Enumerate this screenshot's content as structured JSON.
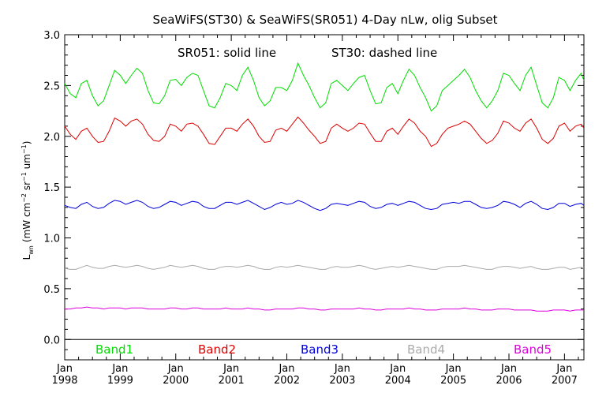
{
  "chart_data": {
    "type": "line",
    "title": "SeaWiFS(ST30) & SeaWiFS(SR051) 4-Day nLw, olig Subset",
    "ylabel": "L_wn (mW cm^-2 sr^-1 um^-1)",
    "ylabel_parts": {
      "main": "L",
      "sub": "wn",
      "units_a": "(mW cm",
      "exp1": "−2",
      "units_b": " sr",
      "exp2": "−1",
      "units_c": " um",
      "exp3": "−1",
      "units_d": ")"
    },
    "annotation_solid": "SR051: solid line",
    "annotation_dashed": "ST30: dashed line",
    "xlim": [
      1998.0,
      2007.35
    ],
    "ylim": [
      -0.2,
      3.0
    ],
    "y_ticks": [
      "0.0",
      "0.5",
      "1.0",
      "1.5",
      "2.0",
      "2.5",
      "3.0"
    ],
    "y_tick_values": [
      0.0,
      0.5,
      1.0,
      1.5,
      2.0,
      2.5,
      3.0
    ],
    "x_ticks": [
      {
        "month": "Jan",
        "year": "1998",
        "value": 1998
      },
      {
        "month": "Jan",
        "year": "1999",
        "value": 1999
      },
      {
        "month": "Jan",
        "year": "2000",
        "value": 2000
      },
      {
        "month": "Jan",
        "year": "2001",
        "value": 2001
      },
      {
        "month": "Jan",
        "year": "2002",
        "value": 2002
      },
      {
        "month": "Jan",
        "year": "2003",
        "value": 2003
      },
      {
        "month": "Jan",
        "year": "2004",
        "value": 2004
      },
      {
        "month": "Jan",
        "year": "2005",
        "value": 2005
      },
      {
        "month": "Jan",
        "year": "2006",
        "value": 2006
      },
      {
        "month": "Jan",
        "year": "2007",
        "value": 2007
      }
    ],
    "zero_line": 0.0,
    "series": [
      {
        "name": "Band1",
        "color": "#00dd00",
        "x": [
          1998.0,
          1998.1,
          1998.2,
          1998.3,
          1998.4,
          1998.5,
          1998.6,
          1998.7,
          1998.8,
          1998.9,
          1999.0,
          1999.1,
          1999.2,
          1999.3,
          1999.4,
          1999.5,
          1999.6,
          1999.7,
          1999.8,
          1999.9,
          2000.0,
          2000.1,
          2000.2,
          2000.3,
          2000.4,
          2000.5,
          2000.6,
          2000.7,
          2000.8,
          2000.9,
          2001.0,
          2001.1,
          2001.2,
          2001.3,
          2001.4,
          2001.5,
          2001.6,
          2001.7,
          2001.8,
          2001.9,
          2002.0,
          2002.1,
          2002.2,
          2002.3,
          2002.4,
          2002.5,
          2002.6,
          2002.7,
          2002.8,
          2002.9,
          2003.0,
          2003.1,
          2003.2,
          2003.3,
          2003.4,
          2003.5,
          2003.6,
          2003.7,
          2003.8,
          2003.9,
          2004.0,
          2004.1,
          2004.2,
          2004.3,
          2004.4,
          2004.5,
          2004.6,
          2004.7,
          2004.8,
          2004.9,
          2005.0,
          2005.1,
          2005.2,
          2005.3,
          2005.4,
          2005.5,
          2005.6,
          2005.7,
          2005.8,
          2005.9,
          2006.0,
          2006.1,
          2006.2,
          2006.3,
          2006.4,
          2006.5,
          2006.6,
          2006.7,
          2006.8,
          2006.9,
          2007.0,
          2007.1,
          2007.2,
          2007.3,
          2007.35
        ],
        "values": [
          2.52,
          2.42,
          2.38,
          2.52,
          2.55,
          2.4,
          2.3,
          2.35,
          2.5,
          2.65,
          2.6,
          2.52,
          2.6,
          2.67,
          2.62,
          2.45,
          2.33,
          2.32,
          2.4,
          2.55,
          2.56,
          2.5,
          2.58,
          2.62,
          2.6,
          2.45,
          2.3,
          2.28,
          2.38,
          2.52,
          2.5,
          2.45,
          2.6,
          2.68,
          2.55,
          2.38,
          2.3,
          2.35,
          2.48,
          2.48,
          2.45,
          2.55,
          2.72,
          2.6,
          2.5,
          2.38,
          2.28,
          2.33,
          2.52,
          2.55,
          2.5,
          2.45,
          2.52,
          2.58,
          2.6,
          2.45,
          2.32,
          2.33,
          2.48,
          2.52,
          2.42,
          2.55,
          2.66,
          2.6,
          2.48,
          2.38,
          2.25,
          2.3,
          2.45,
          2.5,
          2.55,
          2.6,
          2.66,
          2.58,
          2.45,
          2.35,
          2.28,
          2.35,
          2.45,
          2.62,
          2.6,
          2.52,
          2.45,
          2.6,
          2.68,
          2.5,
          2.33,
          2.28,
          2.38,
          2.58,
          2.55,
          2.45,
          2.55,
          2.62,
          2.55
        ]
      },
      {
        "name": "Band2",
        "color": "#dd0000",
        "x": [
          1998.0,
          1998.1,
          1998.2,
          1998.3,
          1998.4,
          1998.5,
          1998.6,
          1998.7,
          1998.8,
          1998.9,
          1999.0,
          1999.1,
          1999.2,
          1999.3,
          1999.4,
          1999.5,
          1999.6,
          1999.7,
          1999.8,
          1999.9,
          2000.0,
          2000.1,
          2000.2,
          2000.3,
          2000.4,
          2000.5,
          2000.6,
          2000.7,
          2000.8,
          2000.9,
          2001.0,
          2001.1,
          2001.2,
          2001.3,
          2001.4,
          2001.5,
          2001.6,
          2001.7,
          2001.8,
          2001.9,
          2002.0,
          2002.1,
          2002.2,
          2002.3,
          2002.4,
          2002.5,
          2002.6,
          2002.7,
          2002.8,
          2002.9,
          2003.0,
          2003.1,
          2003.2,
          2003.3,
          2003.4,
          2003.5,
          2003.6,
          2003.7,
          2003.8,
          2003.9,
          2004.0,
          2004.1,
          2004.2,
          2004.3,
          2004.4,
          2004.5,
          2004.6,
          2004.7,
          2004.8,
          2004.9,
          2005.0,
          2005.1,
          2005.2,
          2005.3,
          2005.4,
          2005.5,
          2005.6,
          2005.7,
          2005.8,
          2005.9,
          2006.0,
          2006.1,
          2006.2,
          2006.3,
          2006.4,
          2006.5,
          2006.6,
          2006.7,
          2006.8,
          2006.9,
          2007.0,
          2007.1,
          2007.2,
          2007.3,
          2007.35
        ],
        "values": [
          2.1,
          2.02,
          1.97,
          2.05,
          2.08,
          2.0,
          1.94,
          1.95,
          2.05,
          2.18,
          2.15,
          2.1,
          2.15,
          2.17,
          2.12,
          2.02,
          1.96,
          1.95,
          2.0,
          2.12,
          2.1,
          2.05,
          2.12,
          2.13,
          2.1,
          2.02,
          1.93,
          1.92,
          2.0,
          2.08,
          2.08,
          2.05,
          2.12,
          2.17,
          2.1,
          2.0,
          1.94,
          1.95,
          2.06,
          2.08,
          2.05,
          2.12,
          2.19,
          2.13,
          2.06,
          2.0,
          1.93,
          1.95,
          2.08,
          2.12,
          2.08,
          2.05,
          2.08,
          2.13,
          2.12,
          2.03,
          1.95,
          1.95,
          2.05,
          2.08,
          2.02,
          2.1,
          2.17,
          2.13,
          2.05,
          2.0,
          1.9,
          1.93,
          2.02,
          2.08,
          2.1,
          2.12,
          2.15,
          2.12,
          2.05,
          1.98,
          1.93,
          1.96,
          2.03,
          2.15,
          2.13,
          2.08,
          2.05,
          2.13,
          2.17,
          2.08,
          1.97,
          1.93,
          1.98,
          2.1,
          2.13,
          2.05,
          2.1,
          2.12,
          2.08
        ]
      },
      {
        "name": "Band3",
        "color": "#0000dd",
        "x": [
          1998.0,
          1998.1,
          1998.2,
          1998.3,
          1998.4,
          1998.5,
          1998.6,
          1998.7,
          1998.8,
          1998.9,
          1999.0,
          1999.1,
          1999.2,
          1999.3,
          1999.4,
          1999.5,
          1999.6,
          1999.7,
          1999.8,
          1999.9,
          2000.0,
          2000.1,
          2000.2,
          2000.3,
          2000.4,
          2000.5,
          2000.6,
          2000.7,
          2000.8,
          2000.9,
          2001.0,
          2001.1,
          2001.2,
          2001.3,
          2001.4,
          2001.5,
          2001.6,
          2001.7,
          2001.8,
          2001.9,
          2002.0,
          2002.1,
          2002.2,
          2002.3,
          2002.4,
          2002.5,
          2002.6,
          2002.7,
          2002.8,
          2002.9,
          2003.0,
          2003.1,
          2003.2,
          2003.3,
          2003.4,
          2003.5,
          2003.6,
          2003.7,
          2003.8,
          2003.9,
          2004.0,
          2004.1,
          2004.2,
          2004.3,
          2004.4,
          2004.5,
          2004.6,
          2004.7,
          2004.8,
          2004.9,
          2005.0,
          2005.1,
          2005.2,
          2005.3,
          2005.4,
          2005.5,
          2005.6,
          2005.7,
          2005.8,
          2005.9,
          2006.0,
          2006.1,
          2006.2,
          2006.3,
          2006.4,
          2006.5,
          2006.6,
          2006.7,
          2006.8,
          2006.9,
          2007.0,
          2007.1,
          2007.2,
          2007.3,
          2007.35
        ],
        "values": [
          1.32,
          1.3,
          1.29,
          1.33,
          1.35,
          1.31,
          1.29,
          1.3,
          1.34,
          1.37,
          1.36,
          1.33,
          1.35,
          1.37,
          1.35,
          1.31,
          1.29,
          1.3,
          1.33,
          1.36,
          1.35,
          1.32,
          1.34,
          1.36,
          1.35,
          1.31,
          1.29,
          1.29,
          1.32,
          1.35,
          1.35,
          1.33,
          1.35,
          1.37,
          1.34,
          1.31,
          1.28,
          1.3,
          1.33,
          1.35,
          1.33,
          1.34,
          1.37,
          1.35,
          1.32,
          1.29,
          1.27,
          1.29,
          1.33,
          1.34,
          1.33,
          1.32,
          1.34,
          1.36,
          1.35,
          1.31,
          1.29,
          1.3,
          1.33,
          1.34,
          1.32,
          1.34,
          1.36,
          1.35,
          1.32,
          1.29,
          1.28,
          1.29,
          1.33,
          1.34,
          1.35,
          1.34,
          1.36,
          1.36,
          1.33,
          1.3,
          1.29,
          1.3,
          1.32,
          1.36,
          1.35,
          1.33,
          1.3,
          1.34,
          1.36,
          1.33,
          1.29,
          1.28,
          1.3,
          1.34,
          1.34,
          1.31,
          1.33,
          1.34,
          1.32
        ]
      },
      {
        "name": "Band4",
        "color": "#aaaaaa",
        "x": [
          1998.0,
          1998.1,
          1998.2,
          1998.3,
          1998.4,
          1998.5,
          1998.6,
          1998.7,
          1998.8,
          1998.9,
          1999.0,
          1999.1,
          1999.2,
          1999.3,
          1999.4,
          1999.5,
          1999.6,
          1999.7,
          1999.8,
          1999.9,
          2000.0,
          2000.1,
          2000.2,
          2000.3,
          2000.4,
          2000.5,
          2000.6,
          2000.7,
          2000.8,
          2000.9,
          2001.0,
          2001.1,
          2001.2,
          2001.3,
          2001.4,
          2001.5,
          2001.6,
          2001.7,
          2001.8,
          2001.9,
          2002.0,
          2002.1,
          2002.2,
          2002.3,
          2002.4,
          2002.5,
          2002.6,
          2002.7,
          2002.8,
          2002.9,
          2003.0,
          2003.1,
          2003.2,
          2003.3,
          2003.4,
          2003.5,
          2003.6,
          2003.7,
          2003.8,
          2003.9,
          2004.0,
          2004.1,
          2004.2,
          2004.3,
          2004.4,
          2004.5,
          2004.6,
          2004.7,
          2004.8,
          2004.9,
          2005.0,
          2005.1,
          2005.2,
          2005.3,
          2005.4,
          2005.5,
          2005.6,
          2005.7,
          2005.8,
          2005.9,
          2006.0,
          2006.1,
          2006.2,
          2006.3,
          2006.4,
          2006.5,
          2006.6,
          2006.7,
          2006.8,
          2006.9,
          2007.0,
          2007.1,
          2007.2,
          2007.3,
          2007.35
        ],
        "values": [
          0.7,
          0.69,
          0.69,
          0.71,
          0.73,
          0.71,
          0.7,
          0.7,
          0.72,
          0.73,
          0.72,
          0.71,
          0.72,
          0.73,
          0.72,
          0.7,
          0.69,
          0.7,
          0.71,
          0.73,
          0.72,
          0.71,
          0.72,
          0.73,
          0.72,
          0.7,
          0.69,
          0.69,
          0.71,
          0.72,
          0.72,
          0.71,
          0.72,
          0.73,
          0.72,
          0.7,
          0.69,
          0.69,
          0.71,
          0.72,
          0.71,
          0.72,
          0.73,
          0.72,
          0.71,
          0.7,
          0.69,
          0.69,
          0.71,
          0.72,
          0.71,
          0.71,
          0.72,
          0.73,
          0.72,
          0.7,
          0.69,
          0.7,
          0.71,
          0.72,
          0.71,
          0.72,
          0.73,
          0.72,
          0.71,
          0.7,
          0.69,
          0.69,
          0.71,
          0.72,
          0.72,
          0.72,
          0.73,
          0.72,
          0.71,
          0.7,
          0.69,
          0.69,
          0.71,
          0.72,
          0.72,
          0.71,
          0.7,
          0.71,
          0.72,
          0.7,
          0.69,
          0.69,
          0.7,
          0.71,
          0.71,
          0.69,
          0.7,
          0.71,
          0.7
        ]
      },
      {
        "name": "Band5",
        "color": "#dd00dd",
        "x": [
          1998.0,
          1998.1,
          1998.2,
          1998.3,
          1998.4,
          1998.5,
          1998.6,
          1998.7,
          1998.8,
          1998.9,
          1999.0,
          1999.1,
          1999.2,
          1999.3,
          1999.4,
          1999.5,
          1999.6,
          1999.7,
          1999.8,
          1999.9,
          2000.0,
          2000.1,
          2000.2,
          2000.3,
          2000.4,
          2000.5,
          2000.6,
          2000.7,
          2000.8,
          2000.9,
          2001.0,
          2001.1,
          2001.2,
          2001.3,
          2001.4,
          2001.5,
          2001.6,
          2001.7,
          2001.8,
          2001.9,
          2002.0,
          2002.1,
          2002.2,
          2002.3,
          2002.4,
          2002.5,
          2002.6,
          2002.7,
          2002.8,
          2002.9,
          2003.0,
          2003.1,
          2003.2,
          2003.3,
          2003.4,
          2003.5,
          2003.6,
          2003.7,
          2003.8,
          2003.9,
          2004.0,
          2004.1,
          2004.2,
          2004.3,
          2004.4,
          2004.5,
          2004.6,
          2004.7,
          2004.8,
          2004.9,
          2005.0,
          2005.1,
          2005.2,
          2005.3,
          2005.4,
          2005.5,
          2005.6,
          2005.7,
          2005.8,
          2005.9,
          2006.0,
          2006.1,
          2006.2,
          2006.3,
          2006.4,
          2006.5,
          2006.6,
          2006.7,
          2006.8,
          2006.9,
          2007.0,
          2007.1,
          2007.2,
          2007.3,
          2007.35
        ],
        "values": [
          0.3,
          0.3,
          0.31,
          0.31,
          0.32,
          0.31,
          0.31,
          0.3,
          0.31,
          0.31,
          0.31,
          0.3,
          0.31,
          0.31,
          0.31,
          0.3,
          0.3,
          0.3,
          0.3,
          0.31,
          0.31,
          0.3,
          0.3,
          0.31,
          0.31,
          0.3,
          0.3,
          0.3,
          0.3,
          0.31,
          0.3,
          0.3,
          0.3,
          0.31,
          0.3,
          0.3,
          0.29,
          0.29,
          0.3,
          0.3,
          0.3,
          0.3,
          0.31,
          0.31,
          0.3,
          0.3,
          0.29,
          0.29,
          0.3,
          0.3,
          0.3,
          0.3,
          0.3,
          0.31,
          0.3,
          0.3,
          0.29,
          0.29,
          0.3,
          0.3,
          0.3,
          0.3,
          0.31,
          0.3,
          0.3,
          0.29,
          0.29,
          0.29,
          0.3,
          0.3,
          0.3,
          0.3,
          0.31,
          0.3,
          0.3,
          0.29,
          0.29,
          0.29,
          0.3,
          0.3,
          0.3,
          0.29,
          0.29,
          0.29,
          0.29,
          0.28,
          0.28,
          0.28,
          0.29,
          0.29,
          0.29,
          0.28,
          0.29,
          0.29,
          0.29
        ]
      }
    ],
    "legend_placement": "bottom inside plot",
    "grid": false
  }
}
